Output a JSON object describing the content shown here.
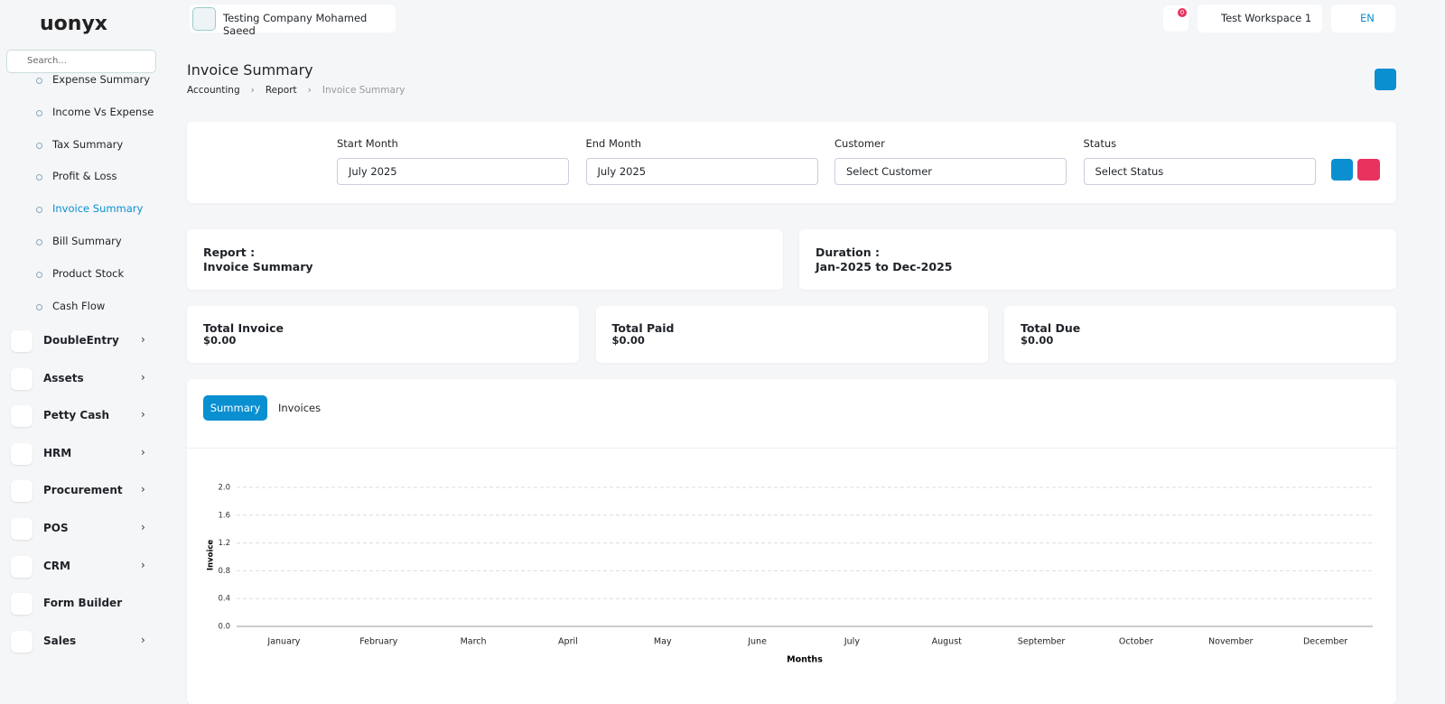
{
  "brand": "uonyx",
  "search_placeholder": "Search...",
  "sidebar": {
    "subitems": [
      "Expense Summary",
      "Income Vs Expense",
      "Tax Summary",
      "Profit & Loss",
      "Invoice Summary",
      "Bill Summary",
      "Product Stock",
      "Cash Flow"
    ],
    "menu": [
      {
        "label": "DoubleEntry",
        "submenu": true
      },
      {
        "label": "Assets",
        "submenu": true
      },
      {
        "label": "Petty Cash",
        "submenu": true
      },
      {
        "label": "HRM",
        "submenu": true
      },
      {
        "label": "Procurement",
        "submenu": true
      },
      {
        "label": "POS",
        "submenu": true
      },
      {
        "label": "CRM",
        "submenu": true
      },
      {
        "label": "Form Builder",
        "submenu": false
      },
      {
        "label": "Sales",
        "submenu": true
      }
    ]
  },
  "topbar": {
    "company": "Testing Company Mohamed Saeed",
    "notifications": "0",
    "workspace": "Test Workspace 1",
    "language": "EN"
  },
  "header": {
    "title": "Invoice Summary",
    "breadcrumb": [
      "Accounting",
      "Report",
      "Invoice Summary"
    ]
  },
  "filters": [
    {
      "label": "Start Month",
      "value": "July 2025"
    },
    {
      "label": "End Month",
      "value": "July 2025"
    },
    {
      "label": "Customer",
      "value": "Select Customer"
    },
    {
      "label": "Status",
      "value": "Select Status"
    }
  ],
  "report": [
    {
      "label": "Report :",
      "value": "Invoice Summary"
    },
    {
      "label": "Duration :",
      "value": "Jan-2025 to Dec-2025"
    }
  ],
  "totals": [
    {
      "label": "Total Invoice",
      "value": "$0.00"
    },
    {
      "label": "Total Paid",
      "value": "$0.00"
    },
    {
      "label": "Total Due",
      "value": "$0.00"
    }
  ],
  "tabs": [
    "Summary",
    "Invoices"
  ],
  "chart_data": {
    "type": "bar",
    "x_label": "Months",
    "y_label": "Invoice",
    "categories": [
      "January",
      "February",
      "March",
      "April",
      "May",
      "June",
      "July",
      "August",
      "September",
      "October",
      "November",
      "December"
    ],
    "values": [
      0,
      0,
      0,
      0,
      0,
      0,
      0,
      0,
      0,
      0,
      0,
      0
    ],
    "color": "#8fd16a",
    "ylim": [
      0,
      2
    ],
    "yticks": [
      {
        "value": 0,
        "label": "0.0"
      },
      {
        "value": 0.4,
        "label": "0.4"
      },
      {
        "value": 0.8,
        "label": "0.8"
      },
      {
        "value": 1.2,
        "label": "1.2"
      },
      {
        "value": 1.6,
        "label": "1.6"
      },
      {
        "value": 2,
        "label": "2.0"
      }
    ],
    "grid": true
  }
}
